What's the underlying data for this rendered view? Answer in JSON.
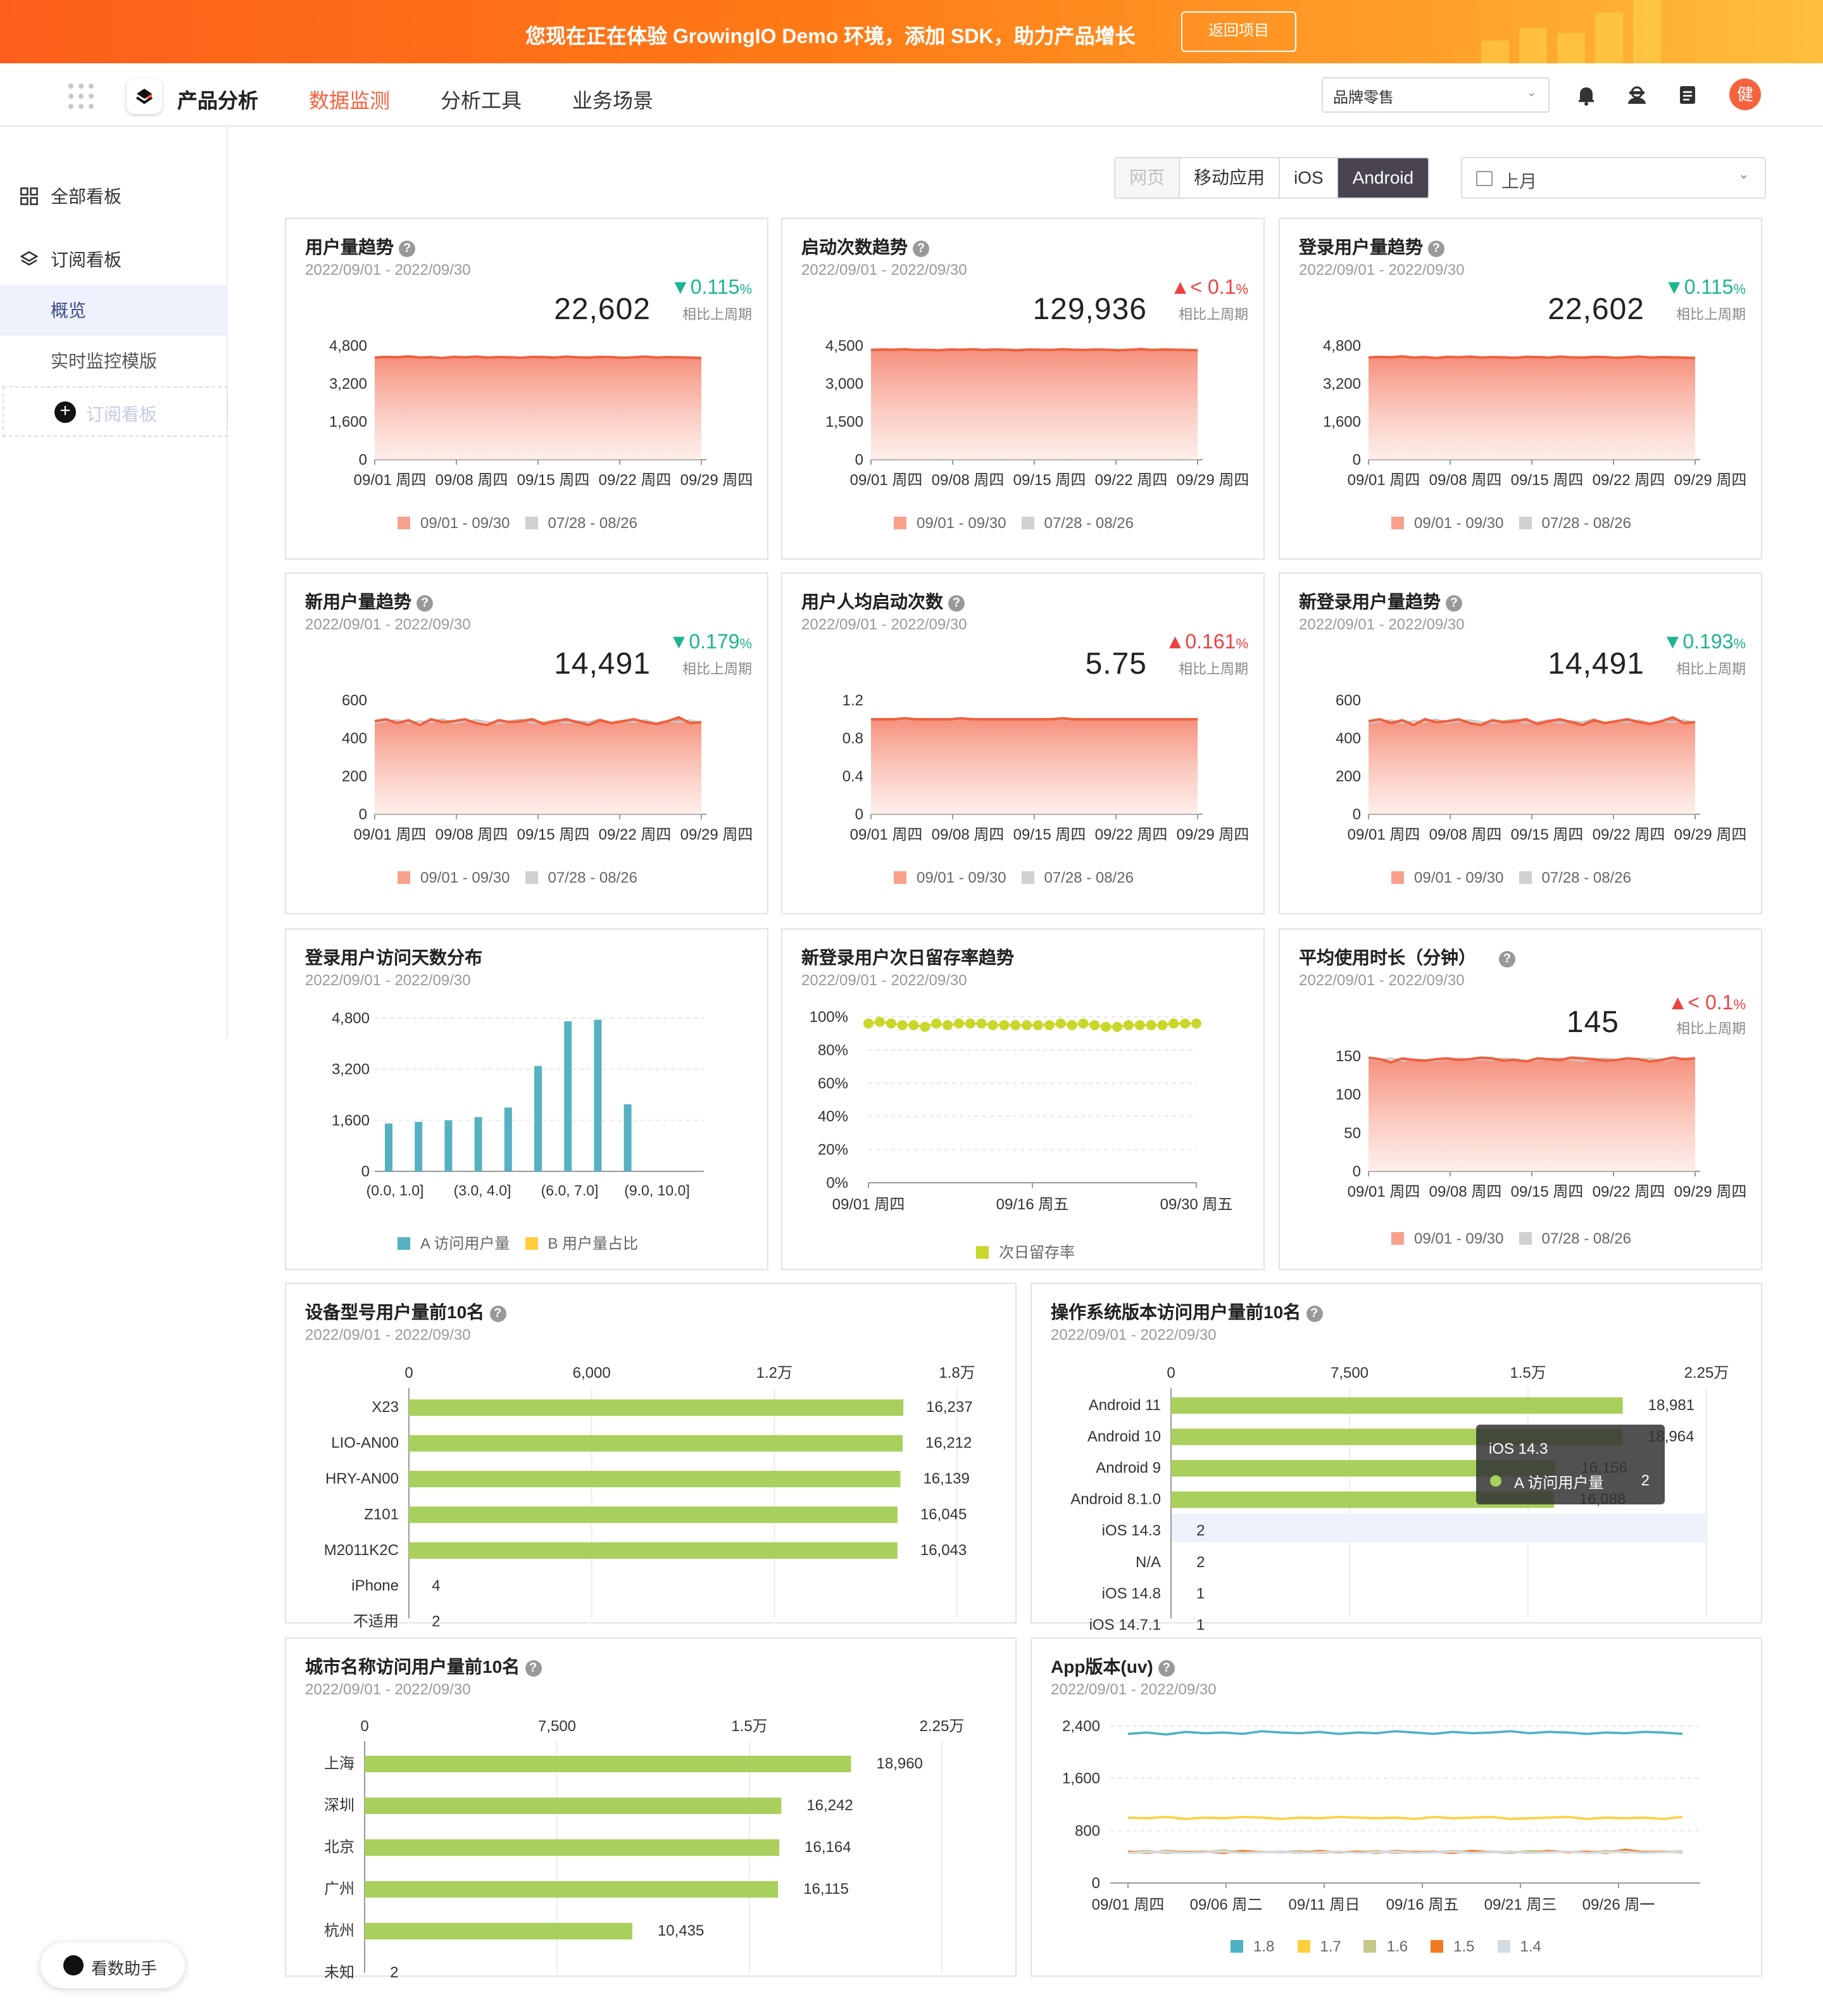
{
  "banner": {
    "text": "您现在正在体验 GrowingIO Demo 环境，添加 SDK，助力产品增长",
    "button": "返回项目"
  },
  "nav": {
    "product": "产品分析",
    "items": [
      "数据监测",
      "分析工具",
      "业务场景"
    ],
    "brand_select": "品牌零售",
    "avatar": "健"
  },
  "sidebar": {
    "all_boards": "全部看板",
    "subscribed": "订阅看板",
    "sub_items": [
      "概览",
      "实时监控模版"
    ],
    "add_board": "订阅看板"
  },
  "filters": {
    "platforms": [
      "网页",
      "移动应用",
      "iOS",
      "Android"
    ],
    "active_platform": "Android",
    "disabled_platform": "网页",
    "date_range": "上月"
  },
  "common": {
    "date": "2022/09/01 - 2022/09/30",
    "vs": "相比上周期",
    "legend_a": "09/01 - 09/30",
    "legend_b": "07/28 - 08/26"
  },
  "cards": [
    {
      "title": "用户量趋势",
      "value": "22,602",
      "delta": "0.115",
      "pct": "%",
      "dir": "down",
      "y_ticks": [
        "4,800",
        "3,200",
        "1,600",
        "0"
      ],
      "x_ticks": [
        "09/01 周四",
        "09/08 周四",
        "09/15 周四",
        "09/22 周四",
        "09/29 周四"
      ]
    },
    {
      "title": "启动次数趋势",
      "value": "129,936",
      "delta": "< 0.1",
      "pct": "%",
      "dir": "up",
      "y_ticks": [
        "4,500",
        "3,000",
        "1,500",
        "0"
      ],
      "x_ticks": [
        "09/01 周四",
        "09/08 周四",
        "09/15 周四",
        "09/22 周四",
        "09/29 周四"
      ]
    },
    {
      "title": "登录用户量趋势",
      "value": "22,602",
      "delta": "0.115",
      "pct": "%",
      "dir": "down",
      "y_ticks": [
        "4,800",
        "3,200",
        "1,600",
        "0"
      ],
      "x_ticks": [
        "09/01 周四",
        "09/08 周四",
        "09/15 周四",
        "09/22 周四",
        "09/29 周四"
      ]
    },
    {
      "title": "新用户量趋势",
      "value": "14,491",
      "delta": "0.179",
      "pct": "%",
      "dir": "down",
      "y_ticks": [
        "600",
        "400",
        "200",
        "0"
      ],
      "x_ticks": [
        "09/01 周四",
        "09/08 周四",
        "09/15 周四",
        "09/22 周四",
        "09/29 周四"
      ]
    },
    {
      "title": "用户人均启动次数",
      "value": "5.75",
      "delta": "0.161",
      "pct": "%",
      "dir": "up",
      "y_ticks": [
        "1.2",
        "0.8",
        "0.4",
        "0"
      ],
      "x_ticks": [
        "09/01 周四",
        "09/08 周四",
        "09/15 周四",
        "09/22 周四",
        "09/29 周四"
      ]
    },
    {
      "title": "新登录用户量趋势",
      "value": "14,491",
      "delta": "0.193",
      "pct": "%",
      "dir": "down",
      "y_ticks": [
        "600",
        "400",
        "200",
        "0"
      ],
      "x_ticks": [
        "09/01 周四",
        "09/08 周四",
        "09/15 周四",
        "09/22 周四",
        "09/29 周四"
      ]
    }
  ],
  "visit_days": {
    "title": "登录用户访问天数分布",
    "y_ticks": [
      "4,800",
      "3,200",
      "1,600",
      "0"
    ],
    "x_ticks": [
      "(0.0, 1.0]",
      "(3.0, 4.0]",
      "(6.0, 7.0]",
      "(9.0, 10.0]"
    ],
    "legend": [
      "A 访问用户量",
      "B 用户量占比"
    ]
  },
  "retention": {
    "title": "新登录用户次日留存率趋势",
    "y_ticks": [
      "100%",
      "80%",
      "60%",
      "40%",
      "20%",
      "0%"
    ],
    "x_ticks": [
      "09/01 周四",
      "09/16 周五",
      "09/30 周五"
    ],
    "legend": "次日留存率"
  },
  "duration": {
    "title": "平均使用时长（分钟）",
    "value": "145",
    "delta": "< 0.1",
    "pct": "%",
    "dir": "up",
    "y_ticks": [
      "150",
      "100",
      "50",
      "0"
    ],
    "x_ticks": [
      "09/01 周四",
      "09/08 周四",
      "09/15 周四",
      "09/22 周四",
      "09/29 周四"
    ]
  },
  "device": {
    "title": "设备型号用户量前10名",
    "ticks": [
      "0",
      "6,000",
      "1.2万",
      "1.8万"
    ]
  },
  "os": {
    "title": "操作系统版本访问用户量前10名",
    "ticks": [
      "0",
      "7,500",
      "1.5万",
      "2.25万"
    ],
    "tooltip": {
      "title": "iOS 14.3",
      "label": "A 访问用户量",
      "value": "2"
    }
  },
  "city": {
    "title": "城市名称访问用户量前10名",
    "ticks": [
      "0",
      "7,500",
      "1.5万",
      "2.25万"
    ]
  },
  "app": {
    "title": "App版本(uv)",
    "y_ticks": [
      "2,400",
      "1,600",
      "800",
      "0"
    ],
    "x_ticks": [
      "09/01 周四",
      "09/06 周二",
      "09/11 周日",
      "09/16 周五",
      "09/21 周三",
      "09/26 周一"
    ]
  },
  "assistant": "看数助手",
  "colors": {
    "accent": "#fc5f3a",
    "area": "#f5755a",
    "teal": "#56b1c2",
    "lime": "#c9d72a",
    "green_bar": "#a9cf5c"
  },
  "chart_data": [
    {
      "type": "area",
      "title": "用户量趋势",
      "series": [
        {
          "name": "09/01 - 09/30",
          "values": [
            4300,
            4330,
            4310,
            4350,
            4300,
            4320,
            4280,
            4330,
            4310,
            4340,
            4300,
            4320,
            4310,
            4290,
            4330,
            4320,
            4300,
            4340,
            4310,
            4300,
            4330,
            4320,
            4290,
            4310,
            4340,
            4300,
            4320,
            4310,
            4300,
            4280
          ]
        },
        {
          "name": "07/28 - 08/26",
          "values": [
            4290,
            4320,
            4300,
            4330,
            4310,
            4300,
            4290,
            4320,
            4300,
            4330,
            4310,
            4300,
            4320,
            4300,
            4310,
            4330,
            4290,
            4320,
            4300,
            4310,
            4320,
            4300,
            4310,
            4300,
            4320,
            4290,
            4310,
            4300,
            4290,
            4300
          ]
        }
      ],
      "ylim": [
        0,
        4800
      ]
    },
    {
      "type": "area",
      "title": "启动次数趋势",
      "series": [
        {
          "name": "09/01 - 09/30",
          "values": [
            4330,
            4350,
            4340,
            4360,
            4330,
            4340,
            4320,
            4350,
            4340,
            4360,
            4330,
            4350,
            4340,
            4320,
            4350,
            4340,
            4330,
            4360,
            4340,
            4330,
            4350,
            4340,
            4320,
            4340,
            4360,
            4330,
            4350,
            4340,
            4330,
            4320
          ]
        },
        {
          "name": "07/28 - 08/26",
          "values": [
            4320,
            4340,
            4330,
            4350,
            4340,
            4330,
            4320,
            4340,
            4330,
            4350,
            4340,
            4330,
            4350,
            4330,
            4340,
            4350,
            4320,
            4340,
            4330,
            4340,
            4350,
            4330,
            4340,
            4330,
            4400,
            4320,
            4340,
            4330,
            4320,
            4330
          ]
        }
      ],
      "ylim": [
        0,
        4500
      ]
    },
    {
      "type": "area",
      "title": "登录用户量趋势",
      "series": [
        {
          "name": "09/01 - 09/30",
          "values": [
            4300,
            4330,
            4310,
            4350,
            4300,
            4320,
            4280,
            4330,
            4310,
            4340,
            4300,
            4320,
            4310,
            4290,
            4330,
            4320,
            4300,
            4340,
            4310,
            4300,
            4330,
            4320,
            4290,
            4310,
            4340,
            4300,
            4320,
            4310,
            4300,
            4280
          ]
        },
        {
          "name": "07/28 - 08/26",
          "values": [
            4290,
            4320,
            4300,
            4330,
            4310,
            4300,
            4290,
            4320,
            4300,
            4330,
            4310,
            4300,
            4320,
            4300,
            4310,
            4330,
            4290,
            4320,
            4300,
            4310,
            4320,
            4300,
            4310,
            4300,
            4320,
            4290,
            4310,
            4300,
            4290,
            4300
          ]
        }
      ],
      "ylim": [
        0,
        4800
      ]
    },
    {
      "type": "area",
      "title": "新用户量趋势",
      "series": [
        {
          "name": "09/01 - 09/30",
          "values": [
            490,
            500,
            480,
            495,
            470,
            500,
            485,
            490,
            500,
            480,
            470,
            495,
            485,
            490,
            500,
            475,
            490,
            500,
            485,
            470,
            495,
            480,
            490,
            500,
            485,
            475,
            490,
            510,
            480,
            485
          ]
        },
        {
          "name": "07/28 - 08/26",
          "values": [
            480,
            490,
            495,
            480,
            490,
            485,
            500,
            480,
            490,
            495,
            485,
            480,
            490,
            500,
            480,
            485,
            495,
            480,
            490,
            485,
            500,
            480,
            490,
            485,
            495,
            480,
            490,
            485,
            495,
            480
          ]
        }
      ],
      "ylim": [
        0,
        600
      ]
    },
    {
      "type": "area",
      "title": "用户人均启动次数",
      "series": [
        {
          "name": "09/01 - 09/30",
          "values": [
            1.0,
            1.0,
            1.0,
            1.01,
            1.0,
            1.0,
            1.0,
            1.0,
            1.01,
            1.0,
            1.0,
            1.0,
            1.0,
            1.0,
            1.0,
            1.0,
            1.0,
            1.01,
            1.0,
            1.0,
            1.0,
            1.0,
            1.0,
            1.0,
            1.0,
            1.0,
            1.0,
            1.0,
            1.0,
            1.0
          ]
        },
        {
          "name": "07/28 - 08/26",
          "values": [
            1.0,
            1.0,
            1.0,
            1.0,
            1.0,
            1.0,
            1.0,
            1.0,
            1.0,
            1.0,
            1.0,
            1.0,
            1.0,
            1.0,
            1.0,
            1.0,
            1.0,
            1.0,
            1.0,
            1.0,
            1.0,
            1.0,
            1.0,
            1.0,
            1.0,
            1.0,
            1.0,
            1.0,
            1.0,
            1.0
          ]
        }
      ],
      "ylim": [
        0,
        1.2
      ]
    },
    {
      "type": "area",
      "title": "新登录用户量趋势",
      "series": [
        {
          "name": "09/01 - 09/30",
          "values": [
            490,
            500,
            480,
            495,
            470,
            500,
            485,
            490,
            500,
            480,
            470,
            495,
            485,
            490,
            500,
            475,
            490,
            500,
            485,
            470,
            495,
            480,
            490,
            500,
            485,
            475,
            490,
            510,
            480,
            485
          ]
        },
        {
          "name": "07/28 - 08/26",
          "values": [
            480,
            490,
            495,
            480,
            490,
            485,
            500,
            480,
            490,
            495,
            485,
            480,
            490,
            500,
            480,
            485,
            495,
            480,
            490,
            485,
            500,
            480,
            490,
            485,
            495,
            480,
            490,
            485,
            495,
            480
          ]
        }
      ],
      "ylim": [
        0,
        600
      ]
    },
    {
      "type": "bar",
      "title": "登录用户访问天数分布",
      "series": [
        {
          "name": "A 访问用户量",
          "values": [
            1500,
            1550,
            1600,
            1700,
            2000,
            3300,
            4700,
            4750,
            2100
          ]
        }
      ],
      "ylim": [
        0,
        4800
      ]
    },
    {
      "type": "line",
      "title": "新登录用户次日留存率趋势",
      "series": [
        {
          "name": "次日留存率",
          "values": [
            96,
            97,
            96,
            95,
            95,
            94,
            96,
            95,
            96,
            96,
            96,
            95,
            95,
            95,
            95,
            95,
            95,
            96,
            95,
            96,
            95,
            94,
            94,
            95,
            95,
            95,
            95,
            96,
            96,
            96
          ]
        }
      ],
      "ylim": [
        0,
        100
      ]
    },
    {
      "type": "area",
      "title": "平均使用时长（分钟）",
      "series": [
        {
          "name": "09/01 - 09/30",
          "values": [
            148,
            146,
            142,
            147,
            145,
            144,
            146,
            147,
            145,
            146,
            148,
            147,
            144,
            145,
            143,
            147,
            146,
            145,
            148,
            147,
            146,
            144,
            145,
            147,
            146,
            143,
            145,
            148,
            146,
            147
          ]
        },
        {
          "name": "07/28 - 08/26",
          "values": [
            146,
            145,
            147,
            144,
            146,
            145,
            144,
            146,
            147,
            145,
            146,
            145,
            147,
            146,
            144,
            145,
            146,
            147,
            145,
            144,
            146,
            147,
            145,
            146,
            145,
            147,
            144,
            146,
            147,
            145
          ]
        }
      ],
      "ylim": [
        0,
        150
      ]
    },
    {
      "type": "bar",
      "title": "设备型号用户量前10名",
      "categories": [
        "X23",
        "LIO-AN00",
        "HRY-AN00",
        "Z101",
        "M2011K2C",
        "iPhone",
        "不适用"
      ],
      "values": [
        16237,
        16212,
        16139,
        16045,
        16043,
        4,
        2
      ],
      "xlim": [
        0,
        18000
      ]
    },
    {
      "type": "bar",
      "title": "操作系统版本访问用户量前10名",
      "categories": [
        "Android 11",
        "Android 10",
        "Android 9",
        "Android 8.1.0",
        "iOS 14.3",
        "N/A",
        "iOS 14.8",
        "iOS 14.7.1"
      ],
      "values": [
        18981,
        18964,
        16156,
        16088,
        2,
        2,
        1,
        1
      ],
      "xlim": [
        0,
        22500
      ]
    },
    {
      "type": "bar",
      "title": "城市名称访问用户量前10名",
      "categories": [
        "上海",
        "深圳",
        "北京",
        "广州",
        "杭州",
        "未知"
      ],
      "values": [
        18960,
        16242,
        16164,
        16115,
        10435,
        2
      ],
      "xlim": [
        0,
        22500
      ]
    },
    {
      "type": "line",
      "title": "App版本(uv)",
      "series": [
        {
          "name": "1.8",
          "values": [
            2280,
            2300,
            2270,
            2310,
            2290,
            2300,
            2280,
            2320,
            2300,
            2290,
            2310,
            2280,
            2300,
            2290,
            2320,
            2300,
            2280,
            2310,
            2290,
            2300,
            2320,
            2290,
            2310,
            2300,
            2280,
            2300,
            2290,
            2310,
            2300,
            2280
          ]
        },
        {
          "name": "1.7",
          "values": [
            1000,
            990,
            1010,
            980,
            1000,
            990,
            1010,
            1000,
            980,
            1000,
            990,
            1010,
            1000,
            990,
            1000,
            980,
            1010,
            990,
            1000,
            1010,
            980,
            990,
            1000,
            1010,
            980,
            1000,
            990,
            1000,
            980,
            1010
          ]
        },
        {
          "name": "1.6",
          "values": [
            470,
            490,
            460,
            480,
            470,
            500,
            460,
            480,
            470,
            490,
            460,
            480,
            470,
            490,
            460,
            480,
            470,
            490,
            470,
            480,
            460,
            490,
            470,
            480,
            460,
            490,
            470,
            480,
            470,
            490
          ]
        },
        {
          "name": "1.5",
          "values": [
            480,
            460,
            490,
            470,
            480,
            460,
            490,
            470,
            480,
            460,
            490,
            470,
            480,
            460,
            490,
            470,
            480,
            460,
            490,
            470,
            480,
            460,
            490,
            470,
            480,
            460,
            510,
            470,
            480,
            470
          ]
        },
        {
          "name": "1.4",
          "values": [
            460,
            470,
            480,
            460,
            470,
            480,
            460,
            470,
            480,
            460,
            470,
            480,
            460,
            470,
            480,
            460,
            470,
            480,
            460,
            470,
            480,
            460,
            470,
            480,
            460,
            470,
            480,
            460,
            470,
            480
          ]
        }
      ],
      "ylim": [
        0,
        2400
      ]
    }
  ]
}
